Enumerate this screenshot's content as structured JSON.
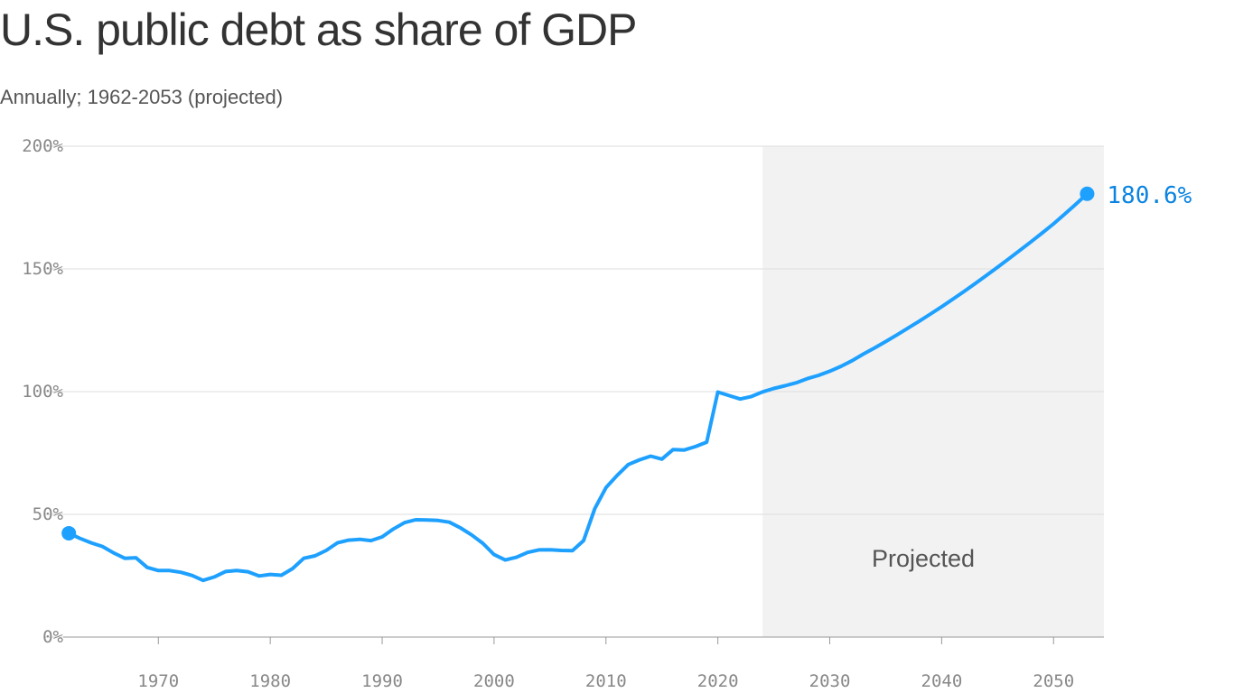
{
  "title": "U.S. public debt as share of GDP",
  "subtitle": "Annually; 1962-2053 (projected)",
  "colors": {
    "line": "#1ea0ff",
    "end_label": "#0a84e0",
    "projected_band": "#f2f2f2",
    "grid": "#dddddd",
    "axis": "#999999"
  },
  "chart_data": {
    "type": "line",
    "title": "U.S. public debt as share of GDP",
    "subtitle": "Annually; 1962-2053 (projected)",
    "xlabel": "",
    "ylabel": "",
    "xlim": [
      1961.5,
      2054.5
    ],
    "ylim": [
      0,
      200
    ],
    "yticks": [
      0,
      50,
      100,
      150,
      200
    ],
    "ytick_labels": [
      "0%",
      "50%",
      "100%",
      "150%",
      "200%"
    ],
    "xticks": [
      1970,
      1980,
      1990,
      2000,
      2010,
      2020,
      2030,
      2040,
      2050
    ],
    "xtick_labels": [
      "1970",
      "1980",
      "1990",
      "2000",
      "2010",
      "2020",
      "2030",
      "2040",
      "2050"
    ],
    "grid": "horizontal",
    "projected_band": {
      "start": 2024,
      "end": 2054.5,
      "label": "Projected"
    },
    "end_label": "180.6%",
    "series": [
      {
        "x": [
          1962,
          1963,
          1964,
          1965,
          1966,
          1967,
          1968,
          1969,
          1970,
          1971,
          1972,
          1973,
          1974,
          1975,
          1976,
          1977,
          1978,
          1979,
          1980,
          1981,
          1982,
          1983,
          1984,
          1985,
          1986,
          1987,
          1988,
          1989,
          1990,
          1991,
          1992,
          1993,
          1994,
          1995,
          1996,
          1997,
          1998,
          1999,
          2000,
          2001,
          2002,
          2003,
          2004,
          2005,
          2006,
          2007,
          2008,
          2009,
          2010,
          2011,
          2012,
          2013,
          2014,
          2015,
          2016,
          2017,
          2018,
          2019,
          2020,
          2021,
          2022,
          2023,
          2024,
          2025,
          2026,
          2027,
          2028,
          2029,
          2030,
          2031,
          2032,
          2033,
          2034,
          2035,
          2036,
          2037,
          2038,
          2039,
          2040,
          2041,
          2042,
          2043,
          2044,
          2045,
          2046,
          2047,
          2048,
          2049,
          2050,
          2051,
          2052,
          2053
        ],
        "values": [
          42.3,
          40.2,
          38.4,
          36.9,
          34.3,
          32.1,
          32.3,
          28.4,
          27.1,
          27.1,
          26.4,
          25.1,
          23.1,
          24.5,
          26.7,
          27.1,
          26.6,
          24.9,
          25.5,
          25.2,
          27.9,
          32.1,
          33.1,
          35.3,
          38.4,
          39.5,
          39.8,
          39.3,
          40.8,
          44.0,
          46.6,
          47.8,
          47.7,
          47.5,
          46.8,
          44.5,
          41.6,
          38.2,
          33.6,
          31.4,
          32.5,
          34.5,
          35.5,
          35.6,
          35.3,
          35.2,
          39.3,
          52.3,
          60.9,
          65.9,
          70.3,
          72.2,
          73.7,
          72.5,
          76.4,
          76.2,
          77.6,
          79.4,
          99.8,
          98.4,
          97.0,
          98.0,
          99.9,
          101.3,
          102.4,
          103.6,
          105.3,
          106.6,
          108.3,
          110.3,
          112.6,
          115.3,
          117.8,
          120.4,
          123.1,
          125.9,
          128.7,
          131.6,
          134.6,
          137.7,
          140.8,
          144.0,
          147.3,
          150.7,
          154.1,
          157.6,
          161.1,
          164.7,
          168.4,
          172.3,
          176.4,
          180.6
        ]
      }
    ]
  }
}
